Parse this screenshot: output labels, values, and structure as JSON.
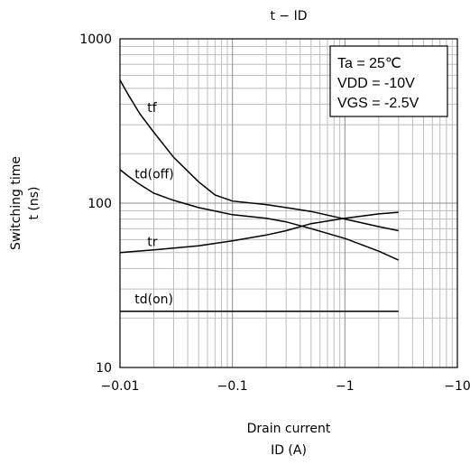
{
  "chart_data": {
    "type": "line",
    "title": "t − ID",
    "xlabel": "Drain current",
    "xlabel_unit": "ID (A)",
    "ylabel": "Switching time",
    "ylabel_unit": "t (ns)",
    "x_scale": "log",
    "y_scale": "log",
    "x_direction": "negative-magnitude",
    "xlim": [
      -0.01,
      -10
    ],
    "ylim": [
      10,
      1000
    ],
    "grid": true,
    "x_ticks": [
      {
        "value": -0.01,
        "label": "−0.01"
      },
      {
        "value": -0.1,
        "label": "−0.1"
      },
      {
        "value": -1,
        "label": "−1"
      },
      {
        "value": -10,
        "label": "−10"
      }
    ],
    "y_ticks": [
      {
        "value": 10,
        "label": "10"
      },
      {
        "value": 100,
        "label": "100"
      },
      {
        "value": 1000,
        "label": "1000"
      }
    ],
    "legend": {
      "placement": "top-right",
      "lines": [
        "Ta = 25℃",
        "VDD = -10V",
        "VGS = -2.5V"
      ]
    },
    "series": [
      {
        "name": "tf",
        "label_at": {
          "x": -0.0175,
          "y": 360
        },
        "points": [
          [
            -0.01,
            560
          ],
          [
            -0.012,
            450
          ],
          [
            -0.015,
            350
          ],
          [
            -0.02,
            270
          ],
          [
            -0.03,
            190
          ],
          [
            -0.05,
            135
          ],
          [
            -0.07,
            112
          ],
          [
            -0.1,
            103
          ],
          [
            -0.2,
            98
          ],
          [
            -0.3,
            94
          ],
          [
            -0.5,
            89
          ],
          [
            -1,
            80
          ],
          [
            -2,
            72
          ],
          [
            -3,
            68
          ]
        ]
      },
      {
        "name": "td(off)",
        "label_at": {
          "x": -0.0135,
          "y": 142
        },
        "points": [
          [
            -0.01,
            160
          ],
          [
            -0.012,
            145
          ],
          [
            -0.015,
            130
          ],
          [
            -0.02,
            115
          ],
          [
            -0.03,
            104
          ],
          [
            -0.05,
            94
          ],
          [
            -0.1,
            85
          ],
          [
            -0.2,
            81
          ],
          [
            -0.3,
            77
          ],
          [
            -0.5,
            70
          ],
          [
            -1,
            61
          ],
          [
            -2,
            51
          ],
          [
            -3,
            45
          ]
        ]
      },
      {
        "name": "tr",
        "label_at": {
          "x": -0.0175,
          "y": 55
        },
        "points": [
          [
            -0.01,
            50
          ],
          [
            -0.02,
            52
          ],
          [
            -0.05,
            55
          ],
          [
            -0.1,
            59
          ],
          [
            -0.2,
            64
          ],
          [
            -0.3,
            68
          ],
          [
            -0.5,
            75
          ],
          [
            -1,
            81
          ],
          [
            -2,
            86
          ],
          [
            -3,
            88
          ]
        ]
      },
      {
        "name": "td(on)",
        "label_at": {
          "x": -0.0135,
          "y": 24.5
        },
        "points": [
          [
            -0.01,
            22
          ],
          [
            -3,
            22
          ]
        ]
      }
    ]
  }
}
